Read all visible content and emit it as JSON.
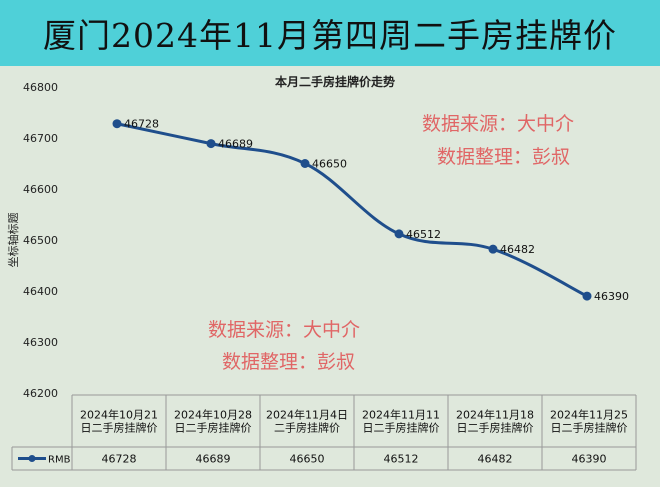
{
  "page_title": "厦门2024年11月第四周二手房挂牌价",
  "watermark": {
    "line1": "数据来源：大中介",
    "line2": "数据整理：彭叔"
  },
  "chart_data": {
    "type": "line",
    "title": "本月二手房挂牌价走势",
    "ylabel": "坐标轴标题",
    "xlabel": "",
    "ylim": [
      46200,
      46800
    ],
    "yticks": [
      46200,
      46300,
      46400,
      46500,
      46600,
      46700,
      46800
    ],
    "grid": false,
    "categories": [
      "2024年10月21日二手房挂牌价",
      "2024年10月28日二手房挂牌价",
      "2024年11月4日二手房挂牌价",
      "2024年11月11日二手房挂牌价",
      "2024年11月18日二手房挂牌价",
      "2024年11月25日二手房挂牌价"
    ],
    "series": [
      {
        "name": "RMB",
        "values": [
          46728,
          46689,
          46650,
          46512,
          46482,
          46390
        ]
      }
    ],
    "data_table": true,
    "colors": {
      "line": "#1f4e8c",
      "title_bar": "#4fd0d8",
      "plot_bg": "#dfe8dc",
      "watermark": "#e06666"
    }
  }
}
